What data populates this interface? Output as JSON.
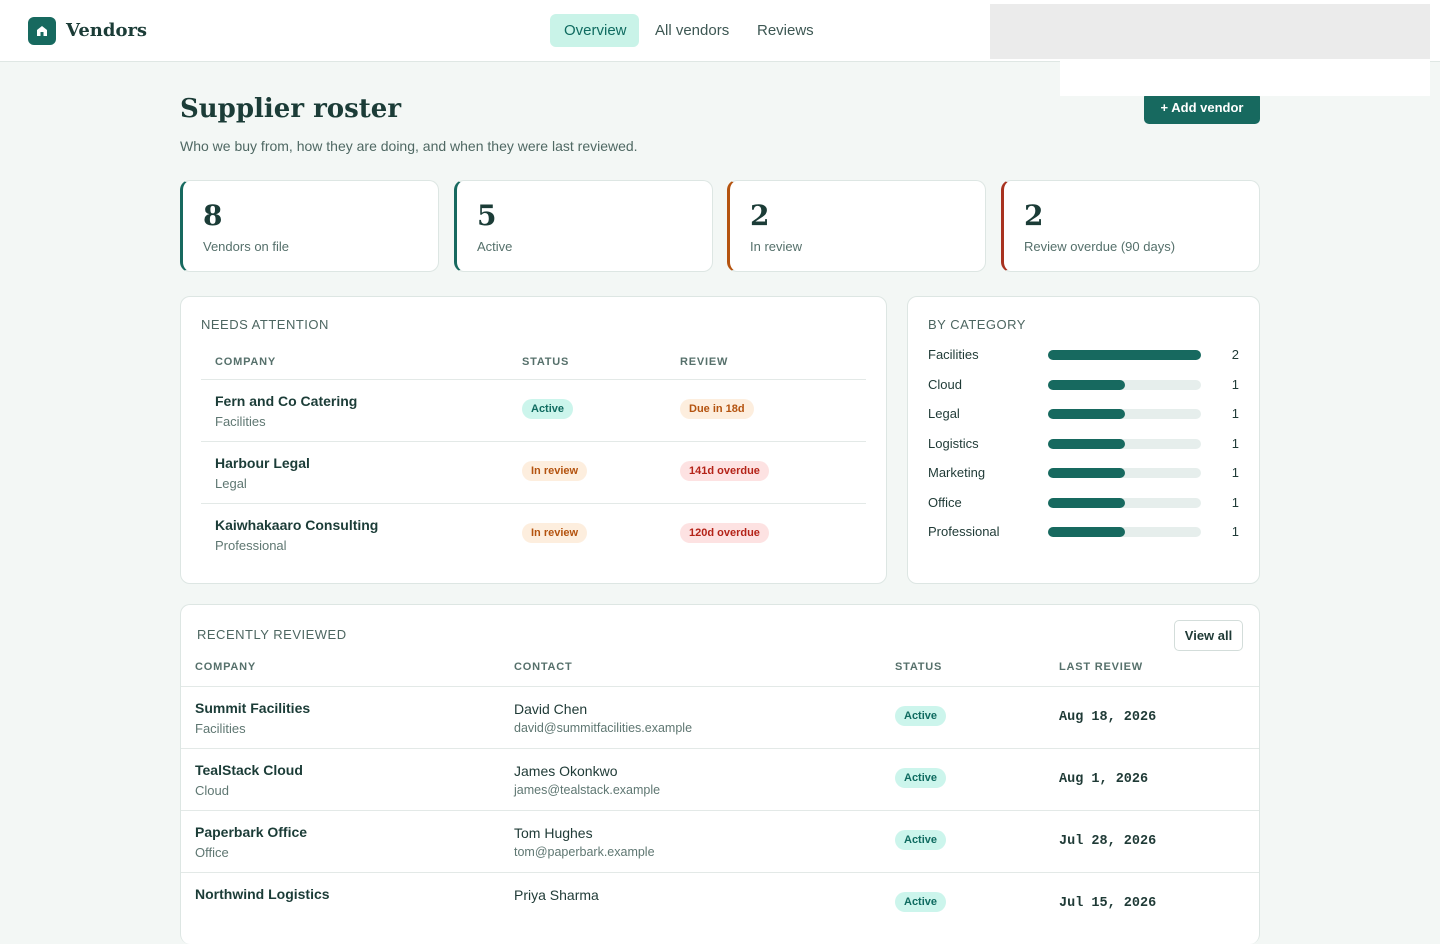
{
  "header": {
    "brand": "Vendors",
    "nav": [
      "Overview",
      "All vendors",
      "Reviews"
    ]
  },
  "page": {
    "title": "Supplier roster",
    "subtitle": "Who we buy from, how they are doing, and when they were last reviewed.",
    "add_button": "+ Add vendor"
  },
  "stats": [
    {
      "value": 8,
      "label": "Vendors on file"
    },
    {
      "value": 5,
      "label": "Active"
    },
    {
      "value": 2,
      "label": "In review"
    },
    {
      "value": 2,
      "label": "Review overdue (90 days)"
    }
  ],
  "needs_attention": {
    "title": "NEEDS ATTENTION",
    "columns": [
      "COMPANY",
      "STATUS",
      "REVIEW"
    ],
    "rows": [
      {
        "company": "Fern and Co Catering",
        "category": "Facilities",
        "status": "Active",
        "review": "Due in 18d"
      },
      {
        "company": "Harbour Legal",
        "category": "Legal",
        "status": "In review",
        "review": "141d overdue"
      },
      {
        "company": "Kaiwhakaaro Consulting",
        "category": "Professional",
        "status": "In review",
        "review": "120d overdue"
      }
    ]
  },
  "by_category": {
    "title": "BY CATEGORY",
    "items": [
      {
        "name": "Facilities",
        "count": 2
      },
      {
        "name": "Cloud",
        "count": 1
      },
      {
        "name": "Legal",
        "count": 1
      },
      {
        "name": "Logistics",
        "count": 1
      },
      {
        "name": "Marketing",
        "count": 1
      },
      {
        "name": "Office",
        "count": 1
      },
      {
        "name": "Professional",
        "count": 1
      }
    ]
  },
  "recently_reviewed": {
    "title": "RECENTLY REVIEWED",
    "view_all": "View all",
    "columns": [
      "COMPANY",
      "CONTACT",
      "STATUS",
      "LAST REVIEW"
    ],
    "rows": [
      {
        "company": "Summit Facilities",
        "category": "Facilities",
        "contact": "David Chen",
        "email": "david@summitfacilities.example",
        "status": "Active",
        "last_review": "Aug 18, 2026"
      },
      {
        "company": "TealStack Cloud",
        "category": "Cloud",
        "contact": "James Okonkwo",
        "email": "james@tealstack.example",
        "status": "Active",
        "last_review": "Aug 1, 2026"
      },
      {
        "company": "Paperbark Office",
        "category": "Office",
        "contact": "Tom Hughes",
        "email": "tom@paperbark.example",
        "status": "Active",
        "last_review": "Jul 28, 2026"
      },
      {
        "company": "Northwind Logistics",
        "contact": "Priya Sharma",
        "status": "Active",
        "last_review": "Jul 15, 2026"
      }
    ]
  }
}
